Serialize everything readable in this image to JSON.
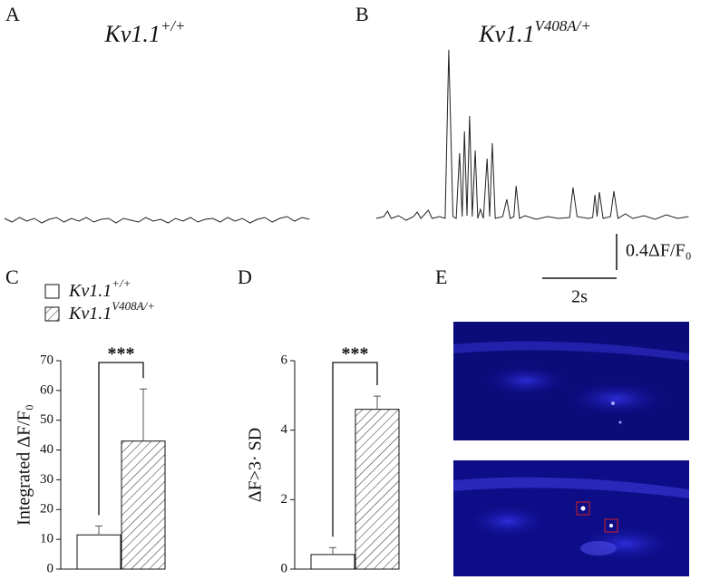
{
  "chart_data": [
    {
      "type": "line",
      "panel_label": "A",
      "title": "Kv1.1",
      "title_superscript": "+/+",
      "color": "#222222",
      "x": [
        0,
        0.2,
        0.4,
        0.6,
        0.8,
        1.0,
        1.2,
        1.4,
        1.6,
        1.8,
        2.0,
        2.2,
        2.4,
        2.6,
        2.8,
        3.0,
        3.2,
        3.4,
        3.6,
        3.8,
        4.0,
        4.2,
        4.4,
        4.6,
        4.8,
        5.0,
        5.2,
        5.4,
        5.6,
        5.8,
        6.0,
        6.2,
        6.4,
        6.6,
        6.8,
        7.0,
        7.2,
        7.4,
        7.6,
        7.8,
        8.0,
        8.2
      ],
      "values": [
        0.02,
        -0.02,
        0.03,
        -0.01,
        0.02,
        -0.03,
        0.01,
        0.03,
        -0.02,
        0.02,
        -0.01,
        0.03,
        -0.02,
        0.01,
        0.02,
        -0.03,
        0.02,
        0,
        -0.02,
        0.03,
        -0.01,
        0.01,
        -0.03,
        0.02,
        -0.01,
        0.03,
        -0.02,
        0.01,
        0.02,
        -0.02,
        0.03,
        -0.01,
        0.02,
        -0.03,
        0.01,
        0.03,
        -0.02,
        0.02,
        0.04,
        -0.01,
        0.03,
        0.01
      ]
    },
    {
      "type": "line",
      "panel_label": "B",
      "title": "Kv1.1",
      "title_superscript": "V408A/+",
      "color": "#222222",
      "x": [
        0,
        0.2,
        0.3,
        0.4,
        0.6,
        0.8,
        1.0,
        1.1,
        1.2,
        1.4,
        1.5,
        1.7,
        1.85,
        1.95,
        2.06,
        2.15,
        2.24,
        2.31,
        2.37,
        2.44,
        2.51,
        2.58,
        2.66,
        2.73,
        2.8,
        2.88,
        2.98,
        3.05,
        3.12,
        3.2,
        3.4,
        3.51,
        3.6,
        3.7,
        3.76,
        3.85,
        4.0,
        4.3,
        4.6,
        4.9,
        5.2,
        5.29,
        5.4,
        5.7,
        5.82,
        5.88,
        5.94,
        6.0,
        6.1,
        6.3,
        6.39,
        6.5,
        6.7,
        6.9,
        7.2,
        7.5,
        7.8,
        8.1,
        8.4
      ],
      "values": [
        0,
        0.02,
        0.08,
        0,
        0.03,
        -0.02,
        0.02,
        0.07,
        0,
        0.09,
        0,
        0.02,
        0,
        1.86,
        0.02,
        0,
        0.72,
        0.02,
        0.96,
        0.03,
        1.13,
        0.02,
        0.75,
        0,
        0.1,
        0,
        0.66,
        0.02,
        0.83,
        0,
        0.02,
        0.21,
        0,
        0.02,
        0.36,
        0,
        0.03,
        -0.01,
        0.02,
        0,
        0.01,
        0.34,
        0.02,
        0,
        0.01,
        0.26,
        0.02,
        0.29,
        0,
        0.02,
        0.3,
        0,
        0.05,
        0,
        0.03,
        -0.01,
        0.04,
        0,
        0.02
      ],
      "scale_bar": {
        "x": 2,
        "x_label": "2s",
        "y": 0.4,
        "y_label": "0.4ΔF/F₀"
      }
    },
    {
      "type": "bar",
      "panel_label": "C",
      "y_label": "Integrated ΔF/F₀",
      "significance": "***",
      "ylim": [
        0,
        70
      ],
      "yticks": [
        0,
        10,
        20,
        30,
        40,
        50,
        60,
        70
      ],
      "series": [
        {
          "name": "Kv1.1",
          "name_superscript": "+/+",
          "color": "#ffffff",
          "hatch": false,
          "values": [
            11.5
          ],
          "errors": [
            3
          ]
        },
        {
          "name": "Kv1.1",
          "name_superscript": "V408A/+",
          "color": "#ffffff",
          "hatch": true,
          "values": [
            43
          ],
          "errors": [
            17.5
          ]
        }
      ]
    },
    {
      "type": "bar",
      "panel_label": "D",
      "y_label": "ΔF>3· SD",
      "significance": "***",
      "ylim": [
        0,
        6
      ],
      "yticks": [
        0,
        2,
        4,
        6
      ],
      "series": [
        {
          "color": "#ffffff",
          "hatch": false,
          "values": [
            0.42
          ],
          "errors": [
            0.2
          ]
        },
        {
          "color": "#ffffff",
          "hatch": true,
          "values": [
            4.6
          ],
          "errors": [
            0.38
          ]
        }
      ]
    }
  ],
  "image_panel": {
    "label": "E"
  }
}
